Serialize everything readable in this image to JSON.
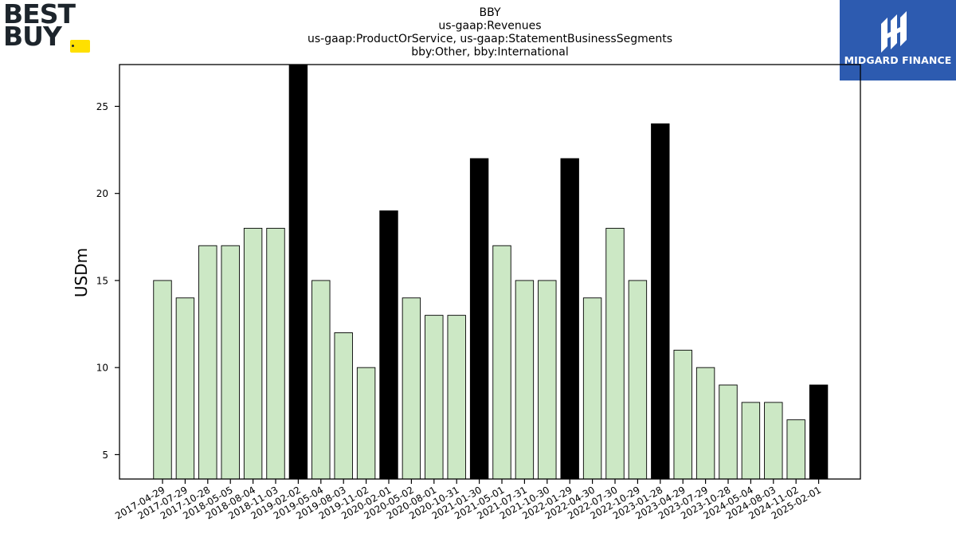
{
  "logos": {
    "left": {
      "line1": "BEST",
      "line2": "BUY",
      "color": "#1d252c",
      "tag_color": "#ffe000"
    },
    "right": {
      "text": "MIDGARD FINANCE",
      "background": "#2d5bb0"
    }
  },
  "chart_data": {
    "type": "bar",
    "title_lines": [
      "BBY",
      "us-gaap:Revenues",
      "us-gaap:ProductOrService, us-gaap:StatementBusinessSegments",
      "bby:Other, bby:International"
    ],
    "ylabel": "USDm",
    "xlabel": "",
    "ylim": [
      3.6,
      27.4
    ],
    "yticks": [
      5,
      10,
      15,
      20,
      25
    ],
    "grid": false,
    "colors": {
      "normal": "#cce8c5",
      "highlight": "#000000",
      "edge": "#000000"
    },
    "categories": [
      "2017-04-29",
      "2017-07-29",
      "2017-10-28",
      "2018-05-05",
      "2018-08-04",
      "2018-11-03",
      "2019-02-02",
      "2019-05-04",
      "2019-08-03",
      "2019-11-02",
      "2020-02-01",
      "2020-05-02",
      "2020-08-01",
      "2020-10-31",
      "2021-01-30",
      "2021-05-01",
      "2021-07-31",
      "2021-10-30",
      "2022-01-29",
      "2022-04-30",
      "2022-07-30",
      "2022-10-29",
      "2023-01-28",
      "2023-04-29",
      "2023-07-29",
      "2023-10-28",
      "2024-05-04",
      "2024-08-03",
      "2024-11-02",
      "2025-02-01"
    ],
    "values": [
      15,
      14,
      17,
      17,
      18,
      18,
      28,
      15,
      12,
      10,
      19,
      14,
      13,
      13,
      22,
      17,
      15,
      15,
      22,
      14,
      18,
      15,
      24,
      11,
      10,
      9,
      8,
      8,
      7,
      9
    ],
    "highlight": [
      false,
      false,
      false,
      false,
      false,
      false,
      true,
      false,
      false,
      false,
      true,
      false,
      false,
      false,
      true,
      false,
      false,
      false,
      true,
      false,
      false,
      false,
      true,
      false,
      false,
      false,
      false,
      false,
      false,
      true
    ]
  }
}
